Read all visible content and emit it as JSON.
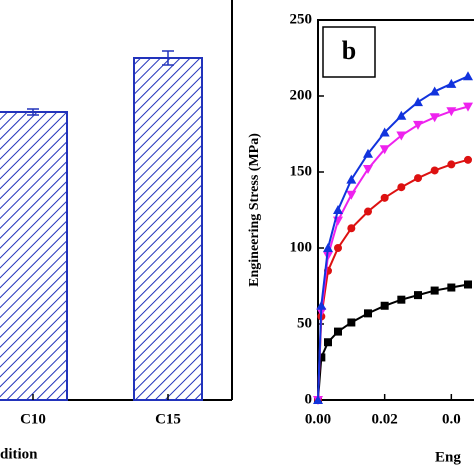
{
  "chart_data": [
    {
      "type": "bar",
      "categories": [
        "C10",
        "C15"
      ],
      "values": [
        288,
        342
      ],
      "errors": [
        3,
        7
      ],
      "color": "#2233bb",
      "ylim": [
        0,
        400
      ],
      "xlabel": "dition"
    },
    {
      "type": "line",
      "panel_label": "b",
      "ylabel": "Engineering Stress (MPa)",
      "xlabel": "Eng",
      "x": [
        0,
        0.001,
        0.003,
        0.006,
        0.01,
        0.015,
        0.02,
        0.025,
        0.03,
        0.035,
        0.04,
        0.045
      ],
      "series": [
        {
          "color": "#000000",
          "marker": "square",
          "values": [
            0,
            28,
            38,
            45,
            51,
            57,
            62,
            66,
            69,
            72,
            74,
            76
          ]
        },
        {
          "color": "#dd1111",
          "marker": "circle",
          "values": [
            0,
            55,
            85,
            100,
            113,
            124,
            133,
            140,
            146,
            151,
            155,
            158
          ]
        },
        {
          "color": "#ee22ee",
          "marker": "triangle-down",
          "values": [
            0,
            58,
            95,
            118,
            135,
            152,
            165,
            174,
            181,
            186,
            190,
            193
          ]
        },
        {
          "color": "#1133dd",
          "marker": "triangle-up",
          "values": [
            0,
            62,
            100,
            125,
            145,
            162,
            176,
            187,
            196,
            203,
            208,
            213
          ]
        }
      ],
      "xlim": [
        0,
        0.0468
      ],
      "ylim": [
        0,
        250
      ],
      "xticks": [
        {
          "value": 0,
          "label": "0.00"
        },
        {
          "value": 0.02,
          "label": "0.02"
        },
        {
          "value": 0.04,
          "label": "0.0"
        }
      ],
      "yticks": [
        0,
        50,
        100,
        150,
        200,
        250
      ]
    }
  ]
}
